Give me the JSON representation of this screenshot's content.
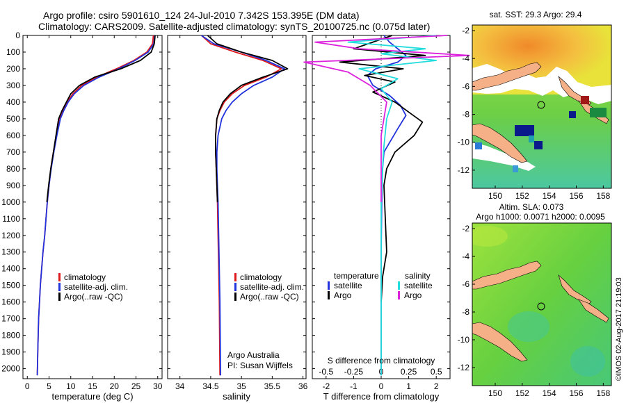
{
  "title_line1": "Argo profile: csiro 5901610_124 24-Jul-2010 7.342S 153.395E (DM data)",
  "title_line2": "Climatology: CARS2009. Satellite-adjusted climatology: synTS_20100725.nc (0.075d later)",
  "credit": "©IMOS 02-Aug-2017 21:19:03",
  "colors": {
    "climatology": "#e0191b",
    "satellite": "#2233dd",
    "argo": "#000000",
    "satellite_salinity": "#22dddd",
    "argo_salinity": "#dd22dd"
  },
  "chart_data": [
    {
      "type": "line",
      "id": "temperature",
      "xlabel": "temperature (deg C)",
      "xlim": [
        -1,
        31
      ],
      "ylim": [
        2060,
        0
      ],
      "xticks": [
        0,
        5,
        10,
        15,
        20,
        25,
        30
      ],
      "yticks": [
        0,
        100,
        200,
        300,
        400,
        500,
        600,
        700,
        800,
        900,
        1000,
        1100,
        1200,
        1300,
        1400,
        1500,
        1600,
        1700,
        1800,
        1900,
        2000
      ],
      "legend": [
        "climatology",
        "satellite-adj. clim.",
        "Argo(..raw -QC)"
      ],
      "legend_position": "lower-center",
      "series": [
        {
          "name": "climatology",
          "color": "#e0191b",
          "x": [
            29.0,
            28.8,
            27.5,
            24.5,
            20.5,
            16.0,
            12.5,
            10.5,
            9.2,
            8.2,
            7.4,
            6.7,
            6.0,
            5.4,
            5.0,
            4.6,
            4.3,
            4.0,
            3.6,
            3.3,
            3.0,
            2.8,
            2.6,
            2.5,
            2.4,
            2.3
          ],
          "y": [
            0,
            50,
            100,
            150,
            200,
            250,
            300,
            350,
            400,
            450,
            500,
            600,
            700,
            800,
            900,
            1000,
            1100,
            1200,
            1300,
            1400,
            1500,
            1600,
            1700,
            1800,
            1900,
            2040
          ]
        },
        {
          "name": "satellite-adj. clim.",
          "color": "#2233dd",
          "x": [
            29.3,
            29.1,
            27.8,
            24.8,
            21.0,
            16.5,
            13.0,
            10.8,
            9.4,
            8.4,
            7.6,
            6.8,
            6.1,
            5.5,
            5.0,
            4.6,
            4.3,
            4.0,
            3.6,
            3.3,
            3.0,
            2.8,
            2.6,
            2.5,
            2.4,
            2.3
          ],
          "y": [
            0,
            50,
            100,
            150,
            200,
            250,
            300,
            350,
            400,
            450,
            500,
            600,
            700,
            800,
            900,
            1000,
            1100,
            1200,
            1300,
            1400,
            1500,
            1600,
            1700,
            1800,
            1900,
            2040
          ]
        },
        {
          "name": "Argo(..raw -QC)",
          "color": "#000000",
          "x": [
            29.4,
            29.2,
            28.5,
            26.0,
            21.5,
            15.5,
            12.0,
            10.0,
            9.0,
            8.0,
            7.2,
            6.6,
            6.0,
            5.4,
            4.9,
            4.5
          ],
          "y": [
            0,
            50,
            100,
            150,
            200,
            250,
            300,
            350,
            400,
            450,
            500,
            600,
            700,
            800,
            900,
            1000
          ]
        }
      ]
    },
    {
      "type": "line",
      "id": "salinity",
      "xlabel": "salinity",
      "xlim": [
        33.8,
        36.05
      ],
      "ylim": [
        2060,
        0
      ],
      "xticks": [
        34,
        34.5,
        35,
        35.5,
        36
      ],
      "legend": [
        "climatology",
        "satellite-adj. clim.",
        "Argo(..raw -QC)"
      ],
      "legend_position": "lower-center",
      "annotation": [
        "Argo Australia",
        "PI: Susan Wijffels"
      ],
      "series": [
        {
          "name": "climatology",
          "color": "#e0191b",
          "x": [
            34.35,
            34.5,
            34.9,
            35.35,
            35.65,
            35.4,
            35.05,
            34.85,
            34.72,
            34.65,
            34.6,
            34.58,
            34.58,
            34.59,
            34.6,
            34.61,
            34.62,
            34.63,
            34.64,
            34.65
          ],
          "y": [
            0,
            50,
            100,
            150,
            200,
            250,
            300,
            350,
            400,
            450,
            500,
            600,
            700,
            800,
            900,
            1000,
            1200,
            1400,
            1600,
            2040
          ]
        },
        {
          "name": "satellite-adj. clim.",
          "color": "#2233dd",
          "x": [
            34.35,
            34.55,
            35.0,
            35.4,
            35.7,
            35.5,
            35.2,
            35.0,
            34.85,
            34.75,
            34.68,
            34.62,
            34.6,
            34.6,
            34.61,
            34.62,
            34.63,
            34.64,
            34.65,
            34.66
          ],
          "y": [
            0,
            50,
            100,
            150,
            200,
            250,
            300,
            350,
            400,
            450,
            500,
            600,
            700,
            800,
            900,
            1000,
            1200,
            1400,
            1600,
            2040
          ]
        },
        {
          "name": "Argo(..raw -QC)",
          "color": "#000000",
          "x": [
            34.45,
            34.6,
            35.0,
            35.5,
            35.75,
            35.35,
            35.0,
            34.82,
            34.7,
            34.64,
            34.6,
            34.58,
            34.58,
            34.59,
            34.6,
            34.61
          ],
          "y": [
            0,
            50,
            100,
            150,
            200,
            250,
            300,
            350,
            400,
            450,
            500,
            600,
            700,
            800,
            900,
            1000
          ]
        }
      ]
    },
    {
      "type": "line",
      "id": "difference",
      "xlabel": "T difference from climatology",
      "xlabel_top": "S difference from climatology",
      "xlim": [
        -2.5,
        2.5
      ],
      "ylim": [
        2060,
        0
      ],
      "xticks": [
        -2,
        -1,
        0,
        1,
        2
      ],
      "xticks_s": [
        -0.5,
        -0.25,
        0,
        0.25,
        0.5
      ],
      "legend_headers": [
        "temperature",
        "salinity"
      ],
      "legend": [
        "satellite",
        "Argo",
        "satellite",
        "Argo"
      ],
      "series": [
        {
          "name": "satellite",
          "variable": "temperature",
          "color": "#2233dd",
          "x": [
            0.1,
            0.3,
            0.6,
            0.9,
            0.6,
            -0.2,
            -0.5,
            -0.3,
            0.3,
            0.7,
            0.9,
            0.6,
            0.1,
            0.05,
            0.02,
            0.0,
            0.0,
            0.0
          ],
          "y": [
            0,
            40,
            80,
            120,
            160,
            200,
            240,
            300,
            360,
            420,
            480,
            560,
            700,
            800,
            1000,
            1300,
            1600,
            2040
          ]
        },
        {
          "name": "Argo",
          "variable": "temperature",
          "color": "#000000",
          "x": [
            0.4,
            -0.3,
            -1.0,
            1.6,
            -1.5,
            0.8,
            -0.6,
            0.5,
            -0.3,
            0.5,
            1.0,
            1.5,
            1.2,
            0.5,
            0.2,
            0.1,
            0.2,
            0.05,
            0.0
          ],
          "y": [
            0,
            40,
            80,
            120,
            160,
            200,
            240,
            280,
            340,
            400,
            460,
            520,
            600,
            700,
            800,
            900,
            1300,
            1450,
            1600
          ]
        },
        {
          "name": "satellite",
          "variable": "salinity",
          "color": "#22dddd",
          "x": [
            0.5,
            -0.3,
            0.4,
            0.0,
            0.5,
            -0.2,
            0.15,
            0.0,
            0.1,
            0.05,
            0.02,
            0.0,
            0.0
          ],
          "y": [
            0,
            40,
            80,
            110,
            150,
            200,
            260,
            320,
            400,
            500,
            700,
            1000,
            2040
          ]
        },
        {
          "name": "Argo",
          "variable": "salinity",
          "color": "#dd22dd",
          "x": [
            0.6,
            -0.6,
            -0.2,
            0.8,
            -0.7,
            -0.3,
            -0.1,
            0.05,
            0.0,
            0.0
          ],
          "y": [
            0,
            40,
            80,
            120,
            160,
            220,
            300,
            400,
            600,
            1000
          ]
        }
      ]
    },
    {
      "type": "heatmap",
      "id": "sst_map",
      "title": "sat. SST: 29.3 Argo: 29.4",
      "xticks": [
        150,
        152,
        154,
        156,
        158
      ],
      "yticks": [
        -2,
        -4,
        -6,
        -8,
        -10,
        -12
      ],
      "marker": {
        "lon": 153.395,
        "lat": -7.342
      }
    },
    {
      "type": "heatmap",
      "id": "sla_map",
      "title_line1": "Altim. SLA: 0.073",
      "title_line2": "Argo h1000: 0.0071 h2000: 0.0095",
      "xticks": [
        150,
        152,
        154,
        156,
        158
      ],
      "yticks": [
        -2,
        -4,
        -6,
        -8,
        -10,
        -12
      ],
      "marker": {
        "lon": 153.395,
        "lat": -7.342
      }
    }
  ]
}
